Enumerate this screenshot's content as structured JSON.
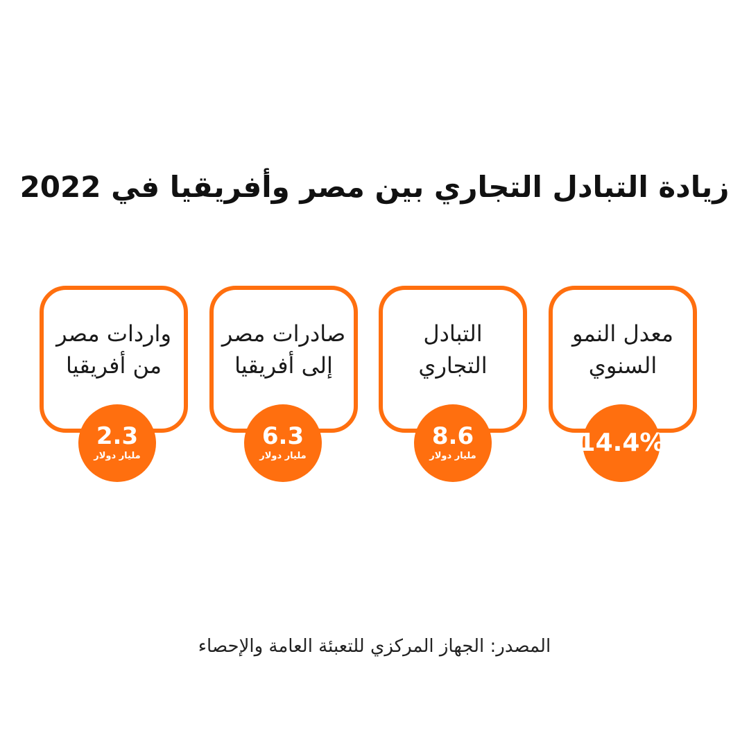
{
  "title": "زيادة التبادل التجاري بين مصر وأفريقيا في 2022",
  "cards": [
    {
      "label_line1": "معدل النمو",
      "label_line2": "السنوي",
      "value": "14.4%",
      "unit": ""
    },
    {
      "label_line1": "التبادل",
      "label_line2": "التجاري",
      "value": "8.6",
      "unit": "مليار دولار"
    },
    {
      "label_line1": "صادرات مصر",
      "label_line2": "إلى أفريقيا",
      "value": "6.3",
      "unit": "مليار دولار"
    },
    {
      "label_line1": "واردات مصر",
      "label_line2": "من أفريقيا",
      "value": "2.3",
      "unit": "مليار دولار"
    }
  ],
  "source": "المصدر: الجهاز المركزي للتعبئة العامة والإحصاء",
  "colors": {
    "accent": "#ff6f0f",
    "text": "#111111",
    "background": "#ffffff"
  }
}
